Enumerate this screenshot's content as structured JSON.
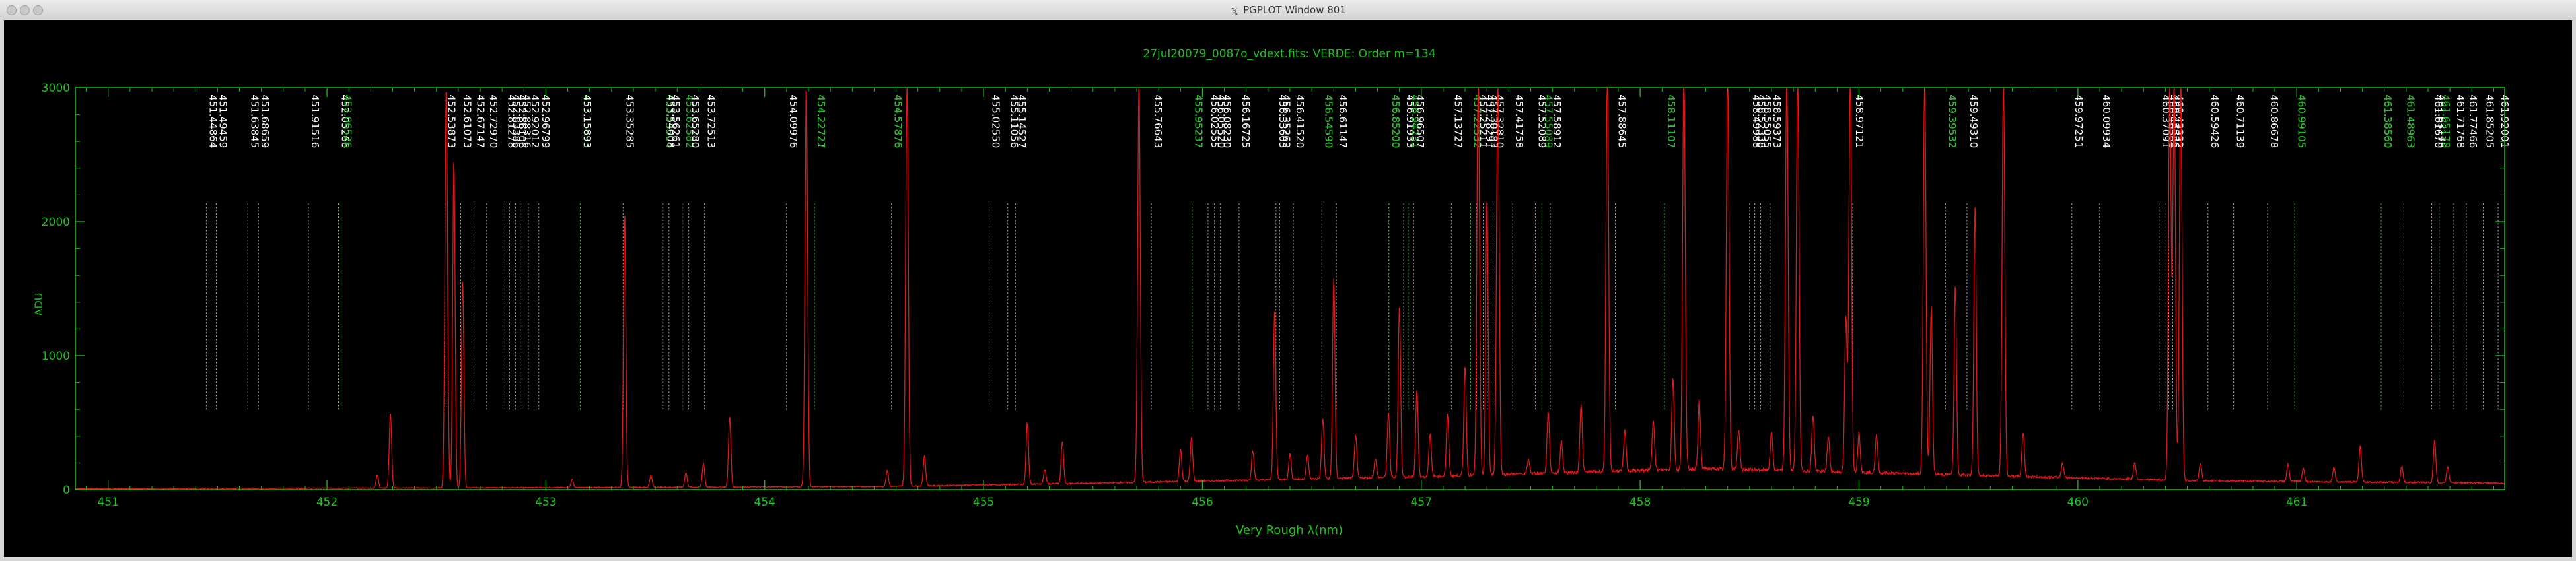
{
  "window": {
    "title": "PGPLOT Window 801",
    "title_icon": "x11-icon",
    "buttons": [
      "close",
      "minimize",
      "zoom"
    ]
  },
  "colors": {
    "frame": "#1fbf1f",
    "axis_text": "#1fbf1f",
    "spectrum": "#e01818",
    "line_white": "#ffffff",
    "line_green": "#1fbf1f",
    "background": "#000000"
  },
  "chart_data": {
    "type": "line",
    "title": "27jul20079_0087o_vdext.fits: VERDE: Order m=134",
    "xlabel": "Very Rough λ(nm)",
    "ylabel": "ADU",
    "xlim": [
      450.85,
      461.95
    ],
    "ylim": [
      0,
      3000
    ],
    "x_ticks": [
      451,
      452,
      453,
      454,
      455,
      456,
      457,
      458,
      459,
      460,
      461
    ],
    "y_ticks": [
      0,
      1000,
      2000,
      3000
    ],
    "grid": false,
    "legend": "none",
    "line_ids": [
      {
        "label": "451.44864",
        "color": "white"
      },
      {
        "label": "451.49459",
        "color": "white"
      },
      {
        "label": "451.63845",
        "color": "white"
      },
      {
        "label": "451.68659",
        "color": "white"
      },
      {
        "label": "451.91516",
        "color": "white"
      },
      {
        "label": "452.05266",
        "color": "white"
      },
      {
        "label": "452.06526",
        "color": "green"
      },
      {
        "label": "452.53873",
        "color": "white"
      },
      {
        "label": "452.61073",
        "color": "white"
      },
      {
        "label": "452.67147",
        "color": "white"
      },
      {
        "label": "452.72970",
        "color": "white"
      },
      {
        "label": "452.81278",
        "color": "white"
      },
      {
        "label": "452.83386",
        "color": "white"
      },
      {
        "label": "452.86106",
        "color": "white"
      },
      {
        "label": "452.88316",
        "color": "white"
      },
      {
        "label": "452.92012",
        "color": "white"
      },
      {
        "label": "452.96799",
        "color": "white"
      },
      {
        "label": "453.15693",
        "color": "green"
      },
      {
        "label": "453.15893",
        "color": "white"
      },
      {
        "label": "453.35285",
        "color": "white"
      },
      {
        "label": "453.53504",
        "color": "green"
      },
      {
        "label": "453.54008",
        "color": "white"
      },
      {
        "label": "453.56261",
        "color": "white"
      },
      {
        "label": "453.62582",
        "color": "green"
      },
      {
        "label": "453.65280",
        "color": "white"
      },
      {
        "label": "453.72513",
        "color": "white"
      },
      {
        "label": "454.09976",
        "color": "white"
      },
      {
        "label": "454.22721",
        "color": "white"
      },
      {
        "label": "454.22727",
        "color": "green"
      },
      {
        "label": "454.57876",
        "color": "white"
      },
      {
        "label": "454.57876",
        "color": "green"
      },
      {
        "label": "455.02550",
        "color": "white"
      },
      {
        "label": "455.11056",
        "color": "white"
      },
      {
        "label": "455.14527",
        "color": "white"
      },
      {
        "label": "455.76643",
        "color": "white"
      },
      {
        "label": "455.95237",
        "color": "white"
      },
      {
        "label": "455.95237",
        "color": "green"
      },
      {
        "label": "456.02555",
        "color": "white"
      },
      {
        "label": "456.05520",
        "color": "white"
      },
      {
        "label": "456.08230",
        "color": "white"
      },
      {
        "label": "456.16725",
        "color": "white"
      },
      {
        "label": "456.33603",
        "color": "white"
      },
      {
        "label": "456.35262",
        "color": "white"
      },
      {
        "label": "456.41520",
        "color": "white"
      },
      {
        "label": "456.54590",
        "color": "white"
      },
      {
        "label": "456.54590",
        "color": "green"
      },
      {
        "label": "456.61147",
        "color": "white"
      },
      {
        "label": "456.85200",
        "color": "white"
      },
      {
        "label": "456.85200",
        "color": "green"
      },
      {
        "label": "456.91933",
        "color": "white"
      },
      {
        "label": "456.94231",
        "color": "green"
      },
      {
        "label": "456.96507",
        "color": "white"
      },
      {
        "label": "457.13727",
        "color": "white"
      },
      {
        "label": "457.22532",
        "color": "white"
      },
      {
        "label": "457.22532",
        "color": "green"
      },
      {
        "label": "457.25211",
        "color": "white"
      },
      {
        "label": "457.28291",
        "color": "white"
      },
      {
        "label": "457.30183",
        "color": "white"
      },
      {
        "label": "457.32810",
        "color": "white"
      },
      {
        "label": "457.41758",
        "color": "white"
      },
      {
        "label": "457.52089",
        "color": "white"
      },
      {
        "label": "457.55089",
        "color": "green"
      },
      {
        "label": "457.58912",
        "color": "white"
      },
      {
        "label": "457.88645",
        "color": "white"
      },
      {
        "label": "458.11107",
        "color": "white"
      },
      {
        "label": "458.11107",
        "color": "green"
      },
      {
        "label": "458.49988",
        "color": "white"
      },
      {
        "label": "458.52338",
        "color": "white"
      },
      {
        "label": "458.55055",
        "color": "white"
      },
      {
        "label": "458.59373",
        "color": "white"
      },
      {
        "label": "458.97121",
        "color": "white"
      },
      {
        "label": "459.39532",
        "color": "white"
      },
      {
        "label": "459.39532",
        "color": "green"
      },
      {
        "label": "459.49310",
        "color": "white"
      },
      {
        "label": "459.97251",
        "color": "white"
      },
      {
        "label": "460.09934",
        "color": "white"
      },
      {
        "label": "460.37091",
        "color": "white"
      },
      {
        "label": "460.40304",
        "color": "white"
      },
      {
        "label": "460.41536",
        "color": "white"
      },
      {
        "label": "460.43332",
        "color": "white"
      },
      {
        "label": "460.59426",
        "color": "white"
      },
      {
        "label": "460.71139",
        "color": "white"
      },
      {
        "label": "460.86678",
        "color": "white"
      },
      {
        "label": "460.99105",
        "color": "white"
      },
      {
        "label": "460.99105",
        "color": "green"
      },
      {
        "label": "461.38560",
        "color": "white"
      },
      {
        "label": "461.38560",
        "color": "green"
      },
      {
        "label": "461.48963",
        "color": "white"
      },
      {
        "label": "461.48963",
        "color": "green"
      },
      {
        "label": "461.61670",
        "color": "white"
      },
      {
        "label": "461.63176",
        "color": "white"
      },
      {
        "label": "461.65178",
        "color": "green"
      },
      {
        "label": "461.71768",
        "color": "white"
      },
      {
        "label": "461.77466",
        "color": "white"
      },
      {
        "label": "461.85205",
        "color": "white"
      },
      {
        "label": "461.92001",
        "color": "white"
      }
    ],
    "spectrum": {
      "baseline": 8,
      "continuum_rise": [
        [
          450.85,
          0
        ],
        [
          452.5,
          5
        ],
        [
          454.5,
          15
        ],
        [
          455.5,
          40
        ],
        [
          457,
          90
        ],
        [
          458.3,
          150
        ],
        [
          459.3,
          110
        ],
        [
          460.5,
          60
        ],
        [
          461.95,
          40
        ]
      ],
      "peaks": [
        [
          452.23,
          100
        ],
        [
          452.29,
          560
        ],
        [
          452.545,
          3000
        ],
        [
          452.58,
          2450
        ],
        [
          452.62,
          1550
        ],
        [
          453.12,
          60
        ],
        [
          453.36,
          2050
        ],
        [
          453.48,
          90
        ],
        [
          453.64,
          110
        ],
        [
          453.72,
          180
        ],
        [
          453.84,
          520
        ],
        [
          454.19,
          3000
        ],
        [
          454.56,
          120
        ],
        [
          454.65,
          3000
        ],
        [
          454.73,
          230
        ],
        [
          455.2,
          460
        ],
        [
          455.28,
          110
        ],
        [
          455.36,
          320
        ],
        [
          455.71,
          3000
        ],
        [
          455.9,
          240
        ],
        [
          455.95,
          330
        ],
        [
          456.23,
          220
        ],
        [
          456.33,
          1280
        ],
        [
          456.4,
          190
        ],
        [
          456.48,
          180
        ],
        [
          456.55,
          450
        ],
        [
          456.6,
          1500
        ],
        [
          456.7,
          320
        ],
        [
          456.79,
          140
        ],
        [
          456.85,
          480
        ],
        [
          456.9,
          1270
        ],
        [
          456.98,
          650
        ],
        [
          457.04,
          320
        ],
        [
          457.12,
          460
        ],
        [
          457.2,
          820
        ],
        [
          457.26,
          3000
        ],
        [
          457.3,
          2060
        ],
        [
          457.35,
          3000
        ],
        [
          457.49,
          100
        ],
        [
          457.58,
          460
        ],
        [
          457.64,
          240
        ],
        [
          457.73,
          510
        ],
        [
          457.85,
          3000
        ],
        [
          457.93,
          300
        ],
        [
          458.06,
          380
        ],
        [
          458.15,
          680
        ],
        [
          458.2,
          3000
        ],
        [
          458.27,
          510
        ],
        [
          458.4,
          3000
        ],
        [
          458.45,
          300
        ],
        [
          458.6,
          280
        ],
        [
          458.67,
          3000
        ],
        [
          458.72,
          3000
        ],
        [
          458.79,
          420
        ],
        [
          458.86,
          260
        ],
        [
          458.94,
          1150
        ],
        [
          458.96,
          3000
        ],
        [
          459.0,
          300
        ],
        [
          459.08,
          280
        ],
        [
          459.3,
          3000
        ],
        [
          459.33,
          1250
        ],
        [
          459.44,
          1410
        ],
        [
          459.53,
          2010
        ],
        [
          459.66,
          3000
        ],
        [
          459.75,
          330
        ],
        [
          459.93,
          110
        ],
        [
          460.26,
          130
        ],
        [
          460.42,
          3000
        ],
        [
          460.44,
          3000
        ],
        [
          460.47,
          3000
        ],
        [
          460.56,
          130
        ],
        [
          460.96,
          130
        ],
        [
          461.03,
          100
        ],
        [
          461.17,
          110
        ],
        [
          461.29,
          270
        ],
        [
          461.48,
          120
        ],
        [
          461.63,
          320
        ],
        [
          461.69,
          120
        ]
      ]
    }
  }
}
